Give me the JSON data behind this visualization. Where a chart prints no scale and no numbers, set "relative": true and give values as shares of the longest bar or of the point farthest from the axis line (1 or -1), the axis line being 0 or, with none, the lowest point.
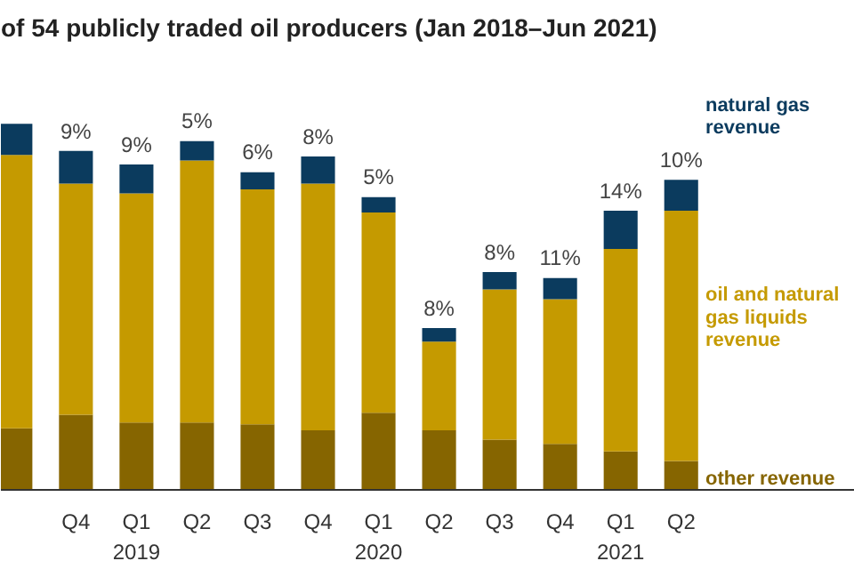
{
  "chart_data": {
    "type": "bar",
    "title": "of 54 publicly traded oil producers (Jan 2018–Jun 2021)",
    "stacked": true,
    "relative": true,
    "legend": "right",
    "categories": [
      null,
      "Q4",
      "Q1\n2019",
      "Q2",
      "Q3",
      "Q4",
      "Q1\n2020",
      "Q2",
      "Q3",
      "Q4",
      "Q1\n2021",
      "Q2"
    ],
    "series": [
      {
        "name": "other revenue",
        "color": "#866500",
        "values": [
          0.168,
          0.205,
          0.184,
          0.184,
          0.179,
          0.163,
          0.211,
          0.163,
          0.137,
          0.126,
          0.105,
          0.079
        ]
      },
      {
        "name": "oil and natural gas liquids revenue",
        "color": "#c59a00",
        "values": [
          0.747,
          0.632,
          0.626,
          0.716,
          0.642,
          0.674,
          0.547,
          0.242,
          0.411,
          0.395,
          0.553,
          0.684
        ]
      },
      {
        "name": "natural gas revenue",
        "color": "#0b3b5e",
        "values": [
          0.085,
          0.089,
          0.079,
          0.053,
          0.047,
          0.074,
          0.042,
          0.037,
          0.047,
          0.058,
          0.105,
          0.084
        ]
      }
    ],
    "annotations": [
      "9%",
      "9%",
      "5%",
      "6%",
      "8%",
      "5%",
      "8%",
      "8%",
      "11%",
      "14%",
      "10%"
    ]
  }
}
